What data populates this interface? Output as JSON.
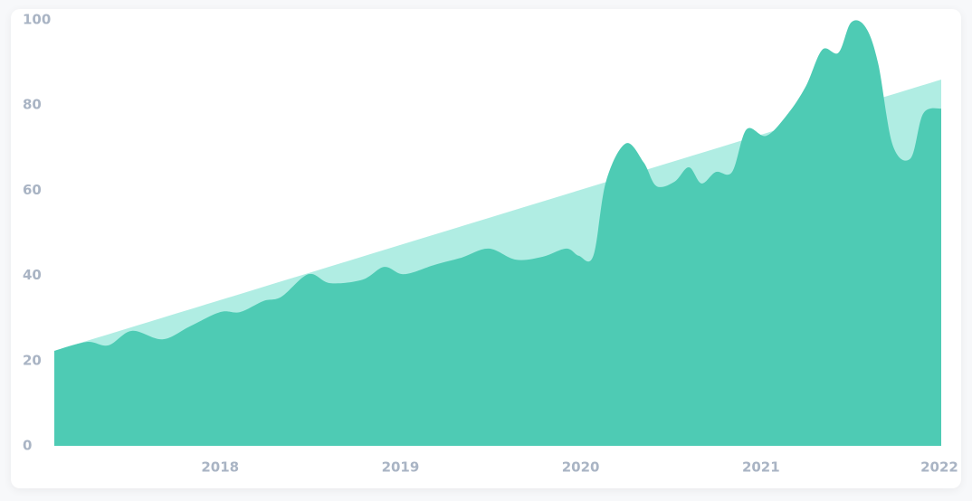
{
  "chart_data": {
    "type": "area",
    "xlim": [
      2017.08,
      2022
    ],
    "xticks": [
      2018,
      2019,
      2020,
      2021,
      2022
    ],
    "ylim": [
      0,
      100
    ],
    "yticks": [
      0,
      20,
      40,
      60,
      80,
      100
    ],
    "grid": false,
    "series": [
      {
        "color": "#b0ede3",
        "x": [
          2017.08,
          2022
        ],
        "values": [
          22.3,
          86
        ]
      },
      {
        "color": "#4ecbb4",
        "x": [
          2017.08,
          2017.26,
          2017.38,
          2017.51,
          2017.68,
          2017.83,
          2018.0,
          2018.11,
          2018.24,
          2018.34,
          2018.49,
          2018.61,
          2018.79,
          2018.91,
          2019.02,
          2019.19,
          2019.34,
          2019.49,
          2019.64,
          2019.79,
          2019.92,
          2019.99,
          2020.07,
          2020.14,
          2020.25,
          2020.35,
          2020.42,
          2020.52,
          2020.6,
          2020.67,
          2020.75,
          2020.84,
          2020.92,
          2021.03,
          2021.15,
          2021.25,
          2021.34,
          2021.43,
          2021.5,
          2021.58,
          2021.65,
          2021.73,
          2021.83,
          2021.9,
          2022.0
        ],
        "values": [
          22.3,
          24.4,
          23.6,
          27,
          25,
          28,
          31.4,
          31.4,
          34,
          35,
          40.3,
          38.2,
          39,
          42,
          40.3,
          42.5,
          44.2,
          46.3,
          43.7,
          44.4,
          46.3,
          44.6,
          44.6,
          62,
          71,
          66.5,
          61,
          62,
          65.4,
          61.6,
          64.3,
          64.3,
          74.3,
          72.8,
          78,
          84.5,
          93,
          92.3,
          99.4,
          98.3,
          89.8,
          70.7,
          67.5,
          78,
          79.2
        ]
      }
    ]
  }
}
